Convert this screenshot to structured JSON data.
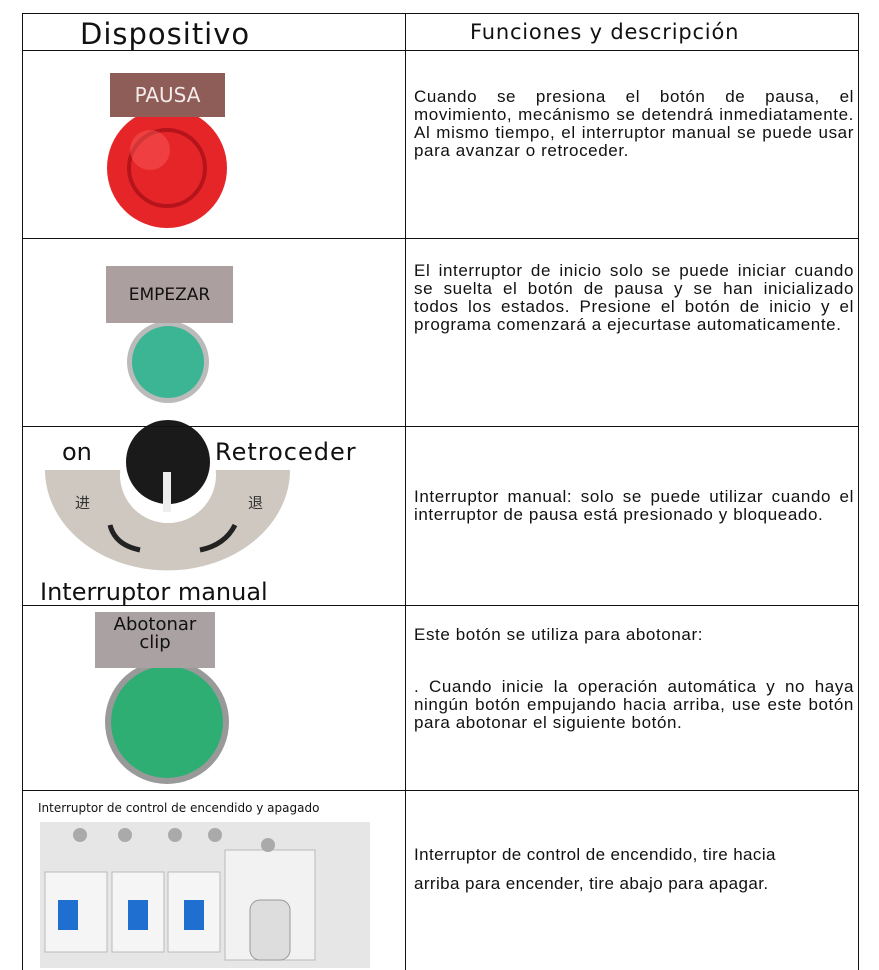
{
  "header": {
    "device": "Dispositivo",
    "function": "Funciones y descripción"
  },
  "rows": [
    {
      "label": "PAUSA",
      "description": "Cuando se presiona el botón de pausa, el movimiento, mecánismo se detendrá inmediatamente. Al mismo tiempo, el interruptor manual se puede usar para avanzar o retroceder."
    },
    {
      "label": "EMPEZAR",
      "description": "El interruptor de inicio solo se puede iniciar cuando se suelta el botón de pausa y se han inicializado todos los estados. Presione el botón de inicio y el programa comenzará a ejecurtase automaticamente."
    },
    {
      "label_left": "on",
      "label_right": "Retroceder",
      "mark_left": "进",
      "mark_right": "退",
      "caption": "Interruptor manual",
      "description": "Interruptor manual: solo se puede utilizar cuando el interruptor de pausa está presionado y bloqueado."
    },
    {
      "label_lines": [
        "Abotonar",
        "clip"
      ],
      "description": [
        "Este botón se utiliza para abotonar:",
        ". Cuando inicie la operación automática y no haya ningún botón empujando hacia arriba, use este botón para abotonar el siguiente botón."
      ]
    },
    {
      "label": "Interruptor de control de encendido y apagado",
      "description": "Interruptor de control de encendido, tire hacia arriba para encender, tire abajo para apagar."
    }
  ]
}
